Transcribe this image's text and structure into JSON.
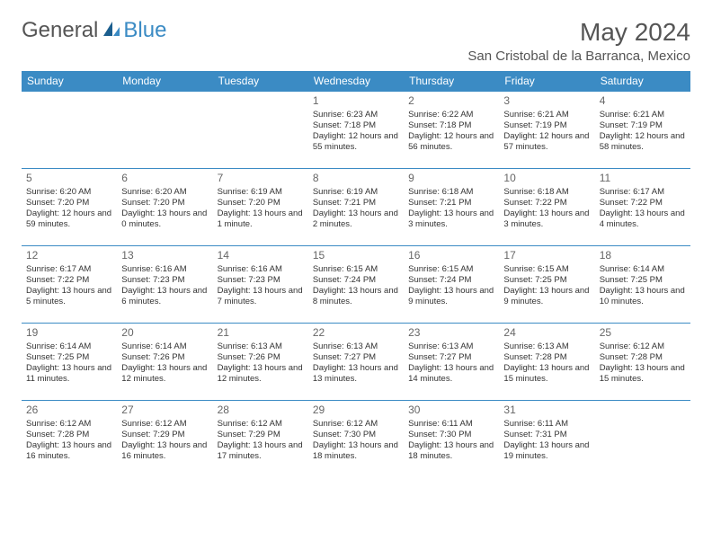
{
  "logo": {
    "text1": "General",
    "text2": "Blue"
  },
  "title": "May 2024",
  "location": "San Cristobal de la Barranca, Mexico",
  "colors": {
    "header_bg": "#3b8bc4",
    "header_text": "#ffffff",
    "border": "#3b8bc4",
    "body_text": "#333333",
    "title_text": "#555555"
  },
  "weekdays": [
    "Sunday",
    "Monday",
    "Tuesday",
    "Wednesday",
    "Thursday",
    "Friday",
    "Saturday"
  ],
  "weeks": [
    [
      null,
      null,
      null,
      {
        "n": "1",
        "sr": "Sunrise: 6:23 AM",
        "ss": "Sunset: 7:18 PM",
        "dl": "Daylight: 12 hours and 55 minutes."
      },
      {
        "n": "2",
        "sr": "Sunrise: 6:22 AM",
        "ss": "Sunset: 7:18 PM",
        "dl": "Daylight: 12 hours and 56 minutes."
      },
      {
        "n": "3",
        "sr": "Sunrise: 6:21 AM",
        "ss": "Sunset: 7:19 PM",
        "dl": "Daylight: 12 hours and 57 minutes."
      },
      {
        "n": "4",
        "sr": "Sunrise: 6:21 AM",
        "ss": "Sunset: 7:19 PM",
        "dl": "Daylight: 12 hours and 58 minutes."
      }
    ],
    [
      {
        "n": "5",
        "sr": "Sunrise: 6:20 AM",
        "ss": "Sunset: 7:20 PM",
        "dl": "Daylight: 12 hours and 59 minutes."
      },
      {
        "n": "6",
        "sr": "Sunrise: 6:20 AM",
        "ss": "Sunset: 7:20 PM",
        "dl": "Daylight: 13 hours and 0 minutes."
      },
      {
        "n": "7",
        "sr": "Sunrise: 6:19 AM",
        "ss": "Sunset: 7:20 PM",
        "dl": "Daylight: 13 hours and 1 minute."
      },
      {
        "n": "8",
        "sr": "Sunrise: 6:19 AM",
        "ss": "Sunset: 7:21 PM",
        "dl": "Daylight: 13 hours and 2 minutes."
      },
      {
        "n": "9",
        "sr": "Sunrise: 6:18 AM",
        "ss": "Sunset: 7:21 PM",
        "dl": "Daylight: 13 hours and 3 minutes."
      },
      {
        "n": "10",
        "sr": "Sunrise: 6:18 AM",
        "ss": "Sunset: 7:22 PM",
        "dl": "Daylight: 13 hours and 3 minutes."
      },
      {
        "n": "11",
        "sr": "Sunrise: 6:17 AM",
        "ss": "Sunset: 7:22 PM",
        "dl": "Daylight: 13 hours and 4 minutes."
      }
    ],
    [
      {
        "n": "12",
        "sr": "Sunrise: 6:17 AM",
        "ss": "Sunset: 7:22 PM",
        "dl": "Daylight: 13 hours and 5 minutes."
      },
      {
        "n": "13",
        "sr": "Sunrise: 6:16 AM",
        "ss": "Sunset: 7:23 PM",
        "dl": "Daylight: 13 hours and 6 minutes."
      },
      {
        "n": "14",
        "sr": "Sunrise: 6:16 AM",
        "ss": "Sunset: 7:23 PM",
        "dl": "Daylight: 13 hours and 7 minutes."
      },
      {
        "n": "15",
        "sr": "Sunrise: 6:15 AM",
        "ss": "Sunset: 7:24 PM",
        "dl": "Daylight: 13 hours and 8 minutes."
      },
      {
        "n": "16",
        "sr": "Sunrise: 6:15 AM",
        "ss": "Sunset: 7:24 PM",
        "dl": "Daylight: 13 hours and 9 minutes."
      },
      {
        "n": "17",
        "sr": "Sunrise: 6:15 AM",
        "ss": "Sunset: 7:25 PM",
        "dl": "Daylight: 13 hours and 9 minutes."
      },
      {
        "n": "18",
        "sr": "Sunrise: 6:14 AM",
        "ss": "Sunset: 7:25 PM",
        "dl": "Daylight: 13 hours and 10 minutes."
      }
    ],
    [
      {
        "n": "19",
        "sr": "Sunrise: 6:14 AM",
        "ss": "Sunset: 7:25 PM",
        "dl": "Daylight: 13 hours and 11 minutes."
      },
      {
        "n": "20",
        "sr": "Sunrise: 6:14 AM",
        "ss": "Sunset: 7:26 PM",
        "dl": "Daylight: 13 hours and 12 minutes."
      },
      {
        "n": "21",
        "sr": "Sunrise: 6:13 AM",
        "ss": "Sunset: 7:26 PM",
        "dl": "Daylight: 13 hours and 12 minutes."
      },
      {
        "n": "22",
        "sr": "Sunrise: 6:13 AM",
        "ss": "Sunset: 7:27 PM",
        "dl": "Daylight: 13 hours and 13 minutes."
      },
      {
        "n": "23",
        "sr": "Sunrise: 6:13 AM",
        "ss": "Sunset: 7:27 PM",
        "dl": "Daylight: 13 hours and 14 minutes."
      },
      {
        "n": "24",
        "sr": "Sunrise: 6:13 AM",
        "ss": "Sunset: 7:28 PM",
        "dl": "Daylight: 13 hours and 15 minutes."
      },
      {
        "n": "25",
        "sr": "Sunrise: 6:12 AM",
        "ss": "Sunset: 7:28 PM",
        "dl": "Daylight: 13 hours and 15 minutes."
      }
    ],
    [
      {
        "n": "26",
        "sr": "Sunrise: 6:12 AM",
        "ss": "Sunset: 7:28 PM",
        "dl": "Daylight: 13 hours and 16 minutes."
      },
      {
        "n": "27",
        "sr": "Sunrise: 6:12 AM",
        "ss": "Sunset: 7:29 PM",
        "dl": "Daylight: 13 hours and 16 minutes."
      },
      {
        "n": "28",
        "sr": "Sunrise: 6:12 AM",
        "ss": "Sunset: 7:29 PM",
        "dl": "Daylight: 13 hours and 17 minutes."
      },
      {
        "n": "29",
        "sr": "Sunrise: 6:12 AM",
        "ss": "Sunset: 7:30 PM",
        "dl": "Daylight: 13 hours and 18 minutes."
      },
      {
        "n": "30",
        "sr": "Sunrise: 6:11 AM",
        "ss": "Sunset: 7:30 PM",
        "dl": "Daylight: 13 hours and 18 minutes."
      },
      {
        "n": "31",
        "sr": "Sunrise: 6:11 AM",
        "ss": "Sunset: 7:31 PM",
        "dl": "Daylight: 13 hours and 19 minutes."
      },
      null
    ]
  ]
}
